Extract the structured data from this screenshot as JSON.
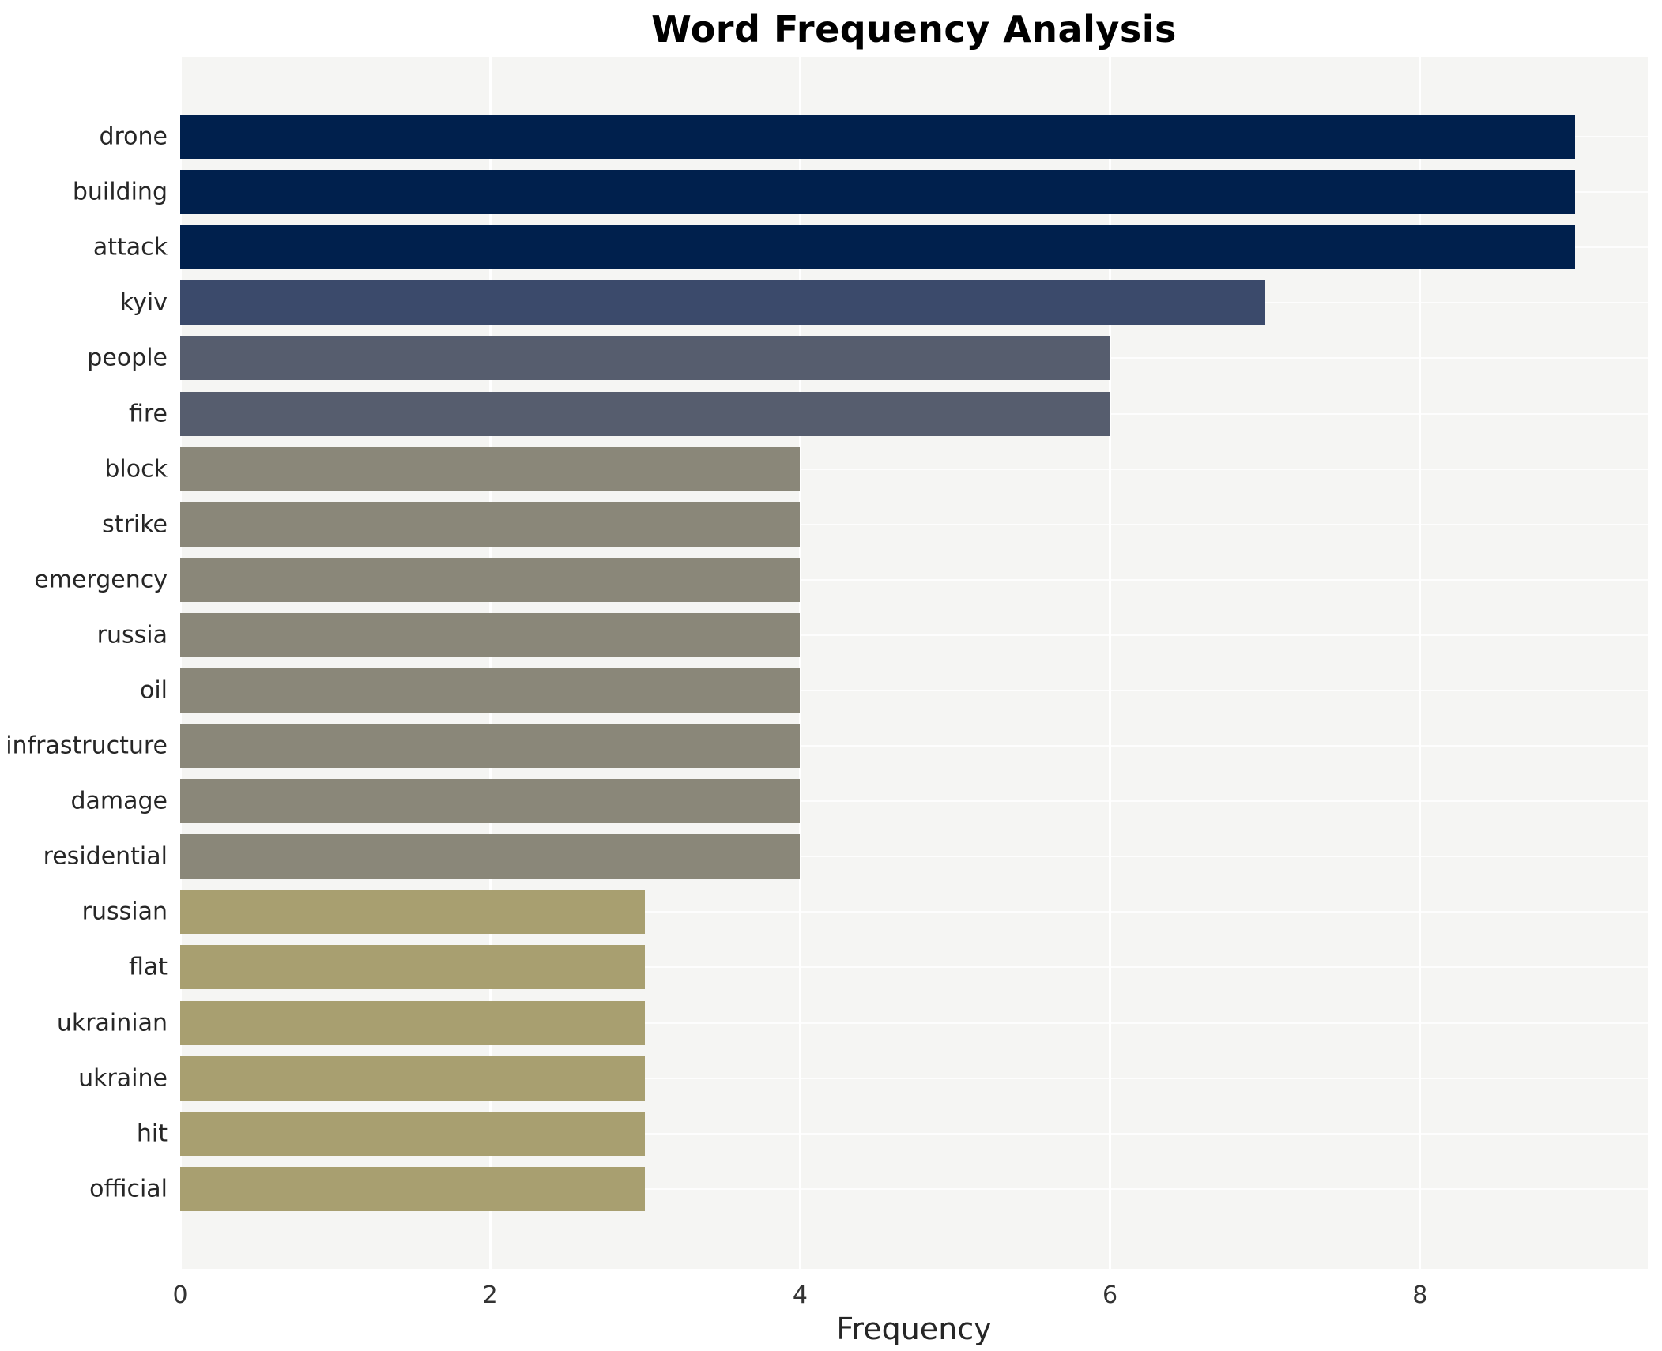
{
  "chart_data": {
    "type": "bar",
    "orientation": "horizontal",
    "title": "Word Frequency Analysis",
    "xlabel": "Frequency",
    "ylabel": "",
    "categories": [
      "drone",
      "building",
      "attack",
      "kyiv",
      "people",
      "fire",
      "block",
      "strike",
      "emergency",
      "russia",
      "oil",
      "infrastructure",
      "damage",
      "residential",
      "russian",
      "flat",
      "ukrainian",
      "ukraine",
      "hit",
      "official"
    ],
    "values": [
      9,
      9,
      9,
      7,
      6,
      6,
      4,
      4,
      4,
      4,
      4,
      4,
      4,
      4,
      3,
      3,
      3,
      3,
      3,
      3
    ],
    "bar_colors": [
      "#00204d",
      "#00204d",
      "#00204d",
      "#3b4a6b",
      "#565d6e",
      "#565d6e",
      "#8a8779",
      "#8a8779",
      "#8a8779",
      "#8a8779",
      "#8a8779",
      "#8a8779",
      "#8a8779",
      "#8a8779",
      "#a89f70",
      "#a89f70",
      "#a89f70",
      "#a89f70",
      "#a89f70",
      "#a89f70"
    ],
    "xlim": [
      0,
      9.47
    ],
    "xticks": [
      0,
      2,
      4,
      6,
      8
    ],
    "grid": "white vertical gridlines at xticks and white horizontal lines at category centers on light gray plot background",
    "legend_position": "none"
  },
  "colors": {
    "page_background": "#ffffff",
    "plot_background": "#f5f5f3",
    "gridline": "#ffffff",
    "title_text": "#000000",
    "category_text": "#262626",
    "tick_text": "#333333"
  }
}
